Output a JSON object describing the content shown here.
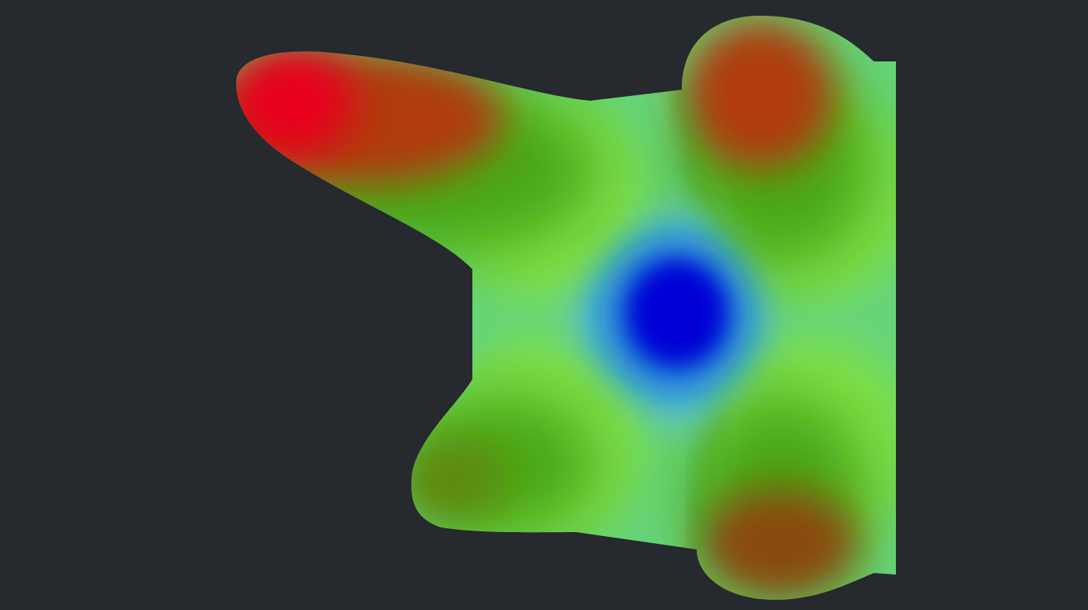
{
  "viewport": {
    "background_color": "#26292d"
  },
  "surface": {
    "colormap": {
      "low": "#0000d6",
      "low_mid": "#5fc4e0",
      "mid": "#66d47a",
      "high_mid": "#7fe04a",
      "green_deep": "#4aa818",
      "high": "#e8001a"
    }
  }
}
